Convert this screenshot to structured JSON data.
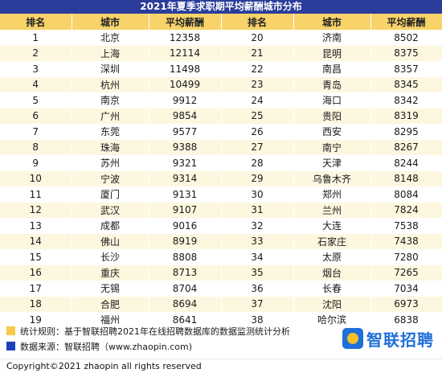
{
  "title": "2021年夏季求职期平均薪酬城市分布",
  "headers": {
    "rank": "排名",
    "city": "城市",
    "salary": "平均薪酬"
  },
  "colors": {
    "header_bg": "#f7d36a",
    "title_bg": "#2b3d9a",
    "note_yellow": "#f7c948",
    "note_blue": "#1e3fbf",
    "brand_blue": "#1f6fd9"
  },
  "rows": [
    {
      "left": {
        "rank": "1",
        "city": "北京",
        "salary": "12358"
      },
      "right": {
        "rank": "20",
        "city": "济南",
        "salary": "8502"
      }
    },
    {
      "left": {
        "rank": "2",
        "city": "上海",
        "salary": "12114"
      },
      "right": {
        "rank": "21",
        "city": "昆明",
        "salary": "8375"
      }
    },
    {
      "left": {
        "rank": "3",
        "city": "深圳",
        "salary": "11498"
      },
      "right": {
        "rank": "22",
        "city": "南昌",
        "salary": "8357"
      }
    },
    {
      "left": {
        "rank": "4",
        "city": "杭州",
        "salary": "10499"
      },
      "right": {
        "rank": "23",
        "city": "青岛",
        "salary": "8345"
      }
    },
    {
      "left": {
        "rank": "5",
        "city": "南京",
        "salary": "9912"
      },
      "right": {
        "rank": "24",
        "city": "海口",
        "salary": "8342"
      }
    },
    {
      "left": {
        "rank": "6",
        "city": "广州",
        "salary": "9854"
      },
      "right": {
        "rank": "25",
        "city": "贵阳",
        "salary": "8319"
      }
    },
    {
      "left": {
        "rank": "7",
        "city": "东莞",
        "salary": "9577"
      },
      "right": {
        "rank": "26",
        "city": "西安",
        "salary": "8295"
      }
    },
    {
      "left": {
        "rank": "8",
        "city": "珠海",
        "salary": "9388"
      },
      "right": {
        "rank": "27",
        "city": "南宁",
        "salary": "8267"
      }
    },
    {
      "left": {
        "rank": "9",
        "city": "苏州",
        "salary": "9321"
      },
      "right": {
        "rank": "28",
        "city": "天津",
        "salary": "8244"
      }
    },
    {
      "left": {
        "rank": "10",
        "city": "宁波",
        "salary": "9314"
      },
      "right": {
        "rank": "29",
        "city": "乌鲁木齐",
        "salary": "8148"
      }
    },
    {
      "left": {
        "rank": "11",
        "city": "厦门",
        "salary": "9131"
      },
      "right": {
        "rank": "30",
        "city": "郑州",
        "salary": "8084"
      }
    },
    {
      "left": {
        "rank": "12",
        "city": "武汉",
        "salary": "9107"
      },
      "right": {
        "rank": "31",
        "city": "兰州",
        "salary": "7824"
      }
    },
    {
      "left": {
        "rank": "13",
        "city": "成都",
        "salary": "9016"
      },
      "right": {
        "rank": "32",
        "city": "大连",
        "salary": "7538"
      }
    },
    {
      "left": {
        "rank": "14",
        "city": "佛山",
        "salary": "8919"
      },
      "right": {
        "rank": "33",
        "city": "石家庄",
        "salary": "7438"
      }
    },
    {
      "left": {
        "rank": "15",
        "city": "长沙",
        "salary": "8808"
      },
      "right": {
        "rank": "34",
        "city": "太原",
        "salary": "7280"
      }
    },
    {
      "left": {
        "rank": "16",
        "city": "重庆",
        "salary": "8713"
      },
      "right": {
        "rank": "35",
        "city": "烟台",
        "salary": "7265"
      }
    },
    {
      "left": {
        "rank": "17",
        "city": "无锡",
        "salary": "8704"
      },
      "right": {
        "rank": "36",
        "city": "长春",
        "salary": "7034"
      }
    },
    {
      "left": {
        "rank": "18",
        "city": "合肥",
        "salary": "8694"
      },
      "right": {
        "rank": "37",
        "city": "沈阳",
        "salary": "6973"
      }
    },
    {
      "left": {
        "rank": "19",
        "city": "福州",
        "salary": "8641"
      },
      "right": {
        "rank": "38",
        "city": "哈尔滨",
        "salary": "6838"
      }
    }
  ],
  "notes": {
    "method": "统计规则：基于智联招聘2021年在线招聘数据库的数据监测统计分析",
    "source": "数据来源：智联招聘（www.zhaopin.com)"
  },
  "logo": {
    "icon": "zhaopin-logo-icon",
    "text": "智联招聘"
  },
  "copyright": "Copyright©2021 zhaopin all rights reserved"
}
